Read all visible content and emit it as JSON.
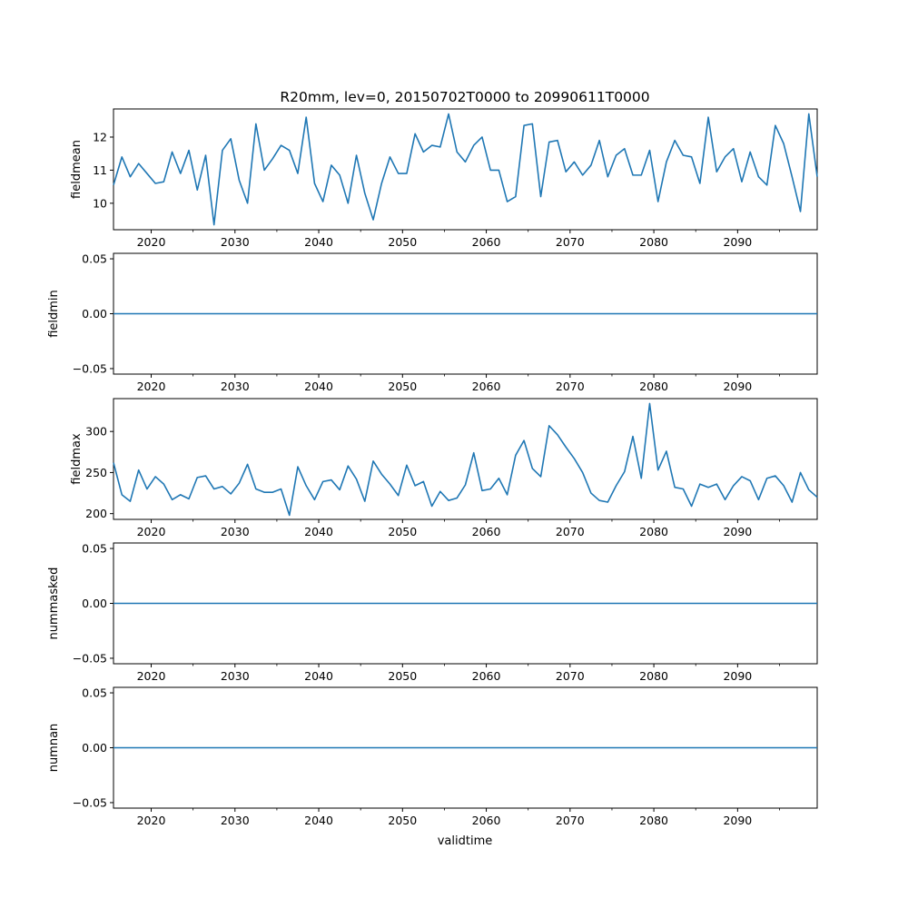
{
  "figure_title": "R20mm, lev=0, 20150702T0000 to 20990611T0000",
  "x_label": "validtime",
  "line_color": "#1f77b4",
  "chart_data": [
    {
      "type": "line",
      "ylabel": "fieldmean",
      "xlim": [
        2015.5,
        2099.5
      ],
      "ylim": [
        9.2,
        12.85
      ],
      "x_ticks": [
        2020,
        2030,
        2040,
        2050,
        2060,
        2070,
        2080,
        2090
      ],
      "x_tick_labels": [
        "2020",
        "2030",
        "2040",
        "2050",
        "2060",
        "2070",
        "2080",
        "2090"
      ],
      "y_ticks": [
        10,
        11,
        12
      ],
      "y_tick_labels": [
        "10",
        "11",
        "12"
      ],
      "x_start": 2015.5,
      "x_step": 1,
      "values": [
        10.55,
        11.4,
        10.8,
        11.2,
        10.9,
        10.6,
        10.65,
        11.55,
        10.9,
        11.6,
        10.4,
        11.45,
        9.35,
        11.6,
        11.95,
        10.7,
        10.0,
        12.4,
        11.0,
        11.35,
        11.75,
        11.6,
        10.9,
        12.6,
        10.6,
        10.05,
        11.15,
        10.85,
        10.0,
        11.45,
        10.3,
        9.5,
        10.6,
        11.4,
        10.9,
        10.9,
        12.1,
        11.55,
        11.75,
        11.7,
        12.7,
        11.55,
        11.25,
        11.75,
        12.0,
        11.0,
        11.0,
        10.05,
        10.2,
        12.35,
        12.4,
        10.2,
        11.85,
        11.9,
        10.95,
        11.25,
        10.85,
        11.15,
        11.9,
        10.8,
        11.45,
        11.65,
        10.85,
        10.85,
        11.6,
        10.05,
        11.25,
        11.9,
        11.45,
        11.4,
        10.6,
        12.6,
        10.95,
        11.4,
        11.65,
        10.65,
        11.55,
        10.8,
        10.55,
        12.35,
        11.8,
        10.8,
        9.75,
        12.7,
        10.8
      ]
    },
    {
      "type": "line",
      "ylabel": "fieldmin",
      "xlim": [
        2015.5,
        2099.5
      ],
      "ylim": [
        -0.055,
        0.055
      ],
      "x_ticks": [
        2020,
        2030,
        2040,
        2050,
        2060,
        2070,
        2080,
        2090
      ],
      "x_tick_labels": [
        "2020",
        "2030",
        "2040",
        "2050",
        "2060",
        "2070",
        "2080",
        "2090"
      ],
      "y_ticks": [
        -0.05,
        0.0,
        0.05
      ],
      "y_tick_labels": [
        "−0.05",
        "0.00",
        "0.05"
      ],
      "x_start": 2015.5,
      "x_step": 84,
      "values": [
        0,
        0
      ]
    },
    {
      "type": "line",
      "ylabel": "fieldmax",
      "xlim": [
        2015.5,
        2099.5
      ],
      "ylim": [
        193,
        340
      ],
      "x_ticks": [
        2020,
        2030,
        2040,
        2050,
        2060,
        2070,
        2080,
        2090
      ],
      "x_tick_labels": [
        "2020",
        "2030",
        "2040",
        "2050",
        "2060",
        "2070",
        "2080",
        "2090"
      ],
      "y_ticks": [
        200,
        250,
        300
      ],
      "y_tick_labels": [
        "200",
        "250",
        "300"
      ],
      "x_start": 2015.5,
      "x_step": 1,
      "values": [
        262,
        223,
        215,
        253,
        230,
        245,
        236,
        217,
        223,
        218,
        244,
        246,
        230,
        233,
        224,
        237,
        260,
        230,
        226,
        226,
        230,
        198,
        257,
        234,
        217,
        239,
        241,
        229,
        258,
        242,
        215,
        264,
        248,
        236,
        222,
        259,
        234,
        239,
        209,
        227,
        216,
        219,
        235,
        274,
        228,
        230,
        243,
        223,
        271,
        289,
        255,
        245,
        307,
        296,
        281,
        267,
        250,
        225,
        216,
        214,
        234,
        251,
        294,
        243,
        334,
        253,
        276,
        232,
        230,
        209,
        236,
        232,
        236,
        217,
        234,
        245,
        240,
        217,
        243,
        246,
        234,
        214,
        250,
        229,
        220
      ]
    },
    {
      "type": "line",
      "ylabel": "nummasked",
      "xlim": [
        2015.5,
        2099.5
      ],
      "ylim": [
        -0.055,
        0.055
      ],
      "x_ticks": [
        2020,
        2030,
        2040,
        2050,
        2060,
        2070,
        2080,
        2090
      ],
      "x_tick_labels": [
        "2020",
        "2030",
        "2040",
        "2050",
        "2060",
        "2070",
        "2080",
        "2090"
      ],
      "y_ticks": [
        -0.05,
        0.0,
        0.05
      ],
      "y_tick_labels": [
        "−0.05",
        "0.00",
        "0.05"
      ],
      "x_start": 2015.5,
      "x_step": 84,
      "values": [
        0,
        0
      ]
    },
    {
      "type": "line",
      "ylabel": "numnan",
      "xlim": [
        2015.5,
        2099.5
      ],
      "ylim": [
        -0.055,
        0.055
      ],
      "x_ticks": [
        2020,
        2030,
        2040,
        2050,
        2060,
        2070,
        2080,
        2090
      ],
      "x_tick_labels": [
        "2020",
        "2030",
        "2040",
        "2050",
        "2060",
        "2070",
        "2080",
        "2090"
      ],
      "y_ticks": [
        -0.05,
        0.0,
        0.05
      ],
      "y_tick_labels": [
        "−0.05",
        "0.00",
        "0.05"
      ],
      "x_start": 2015.5,
      "x_step": 84,
      "values": [
        0,
        0
      ]
    }
  ]
}
